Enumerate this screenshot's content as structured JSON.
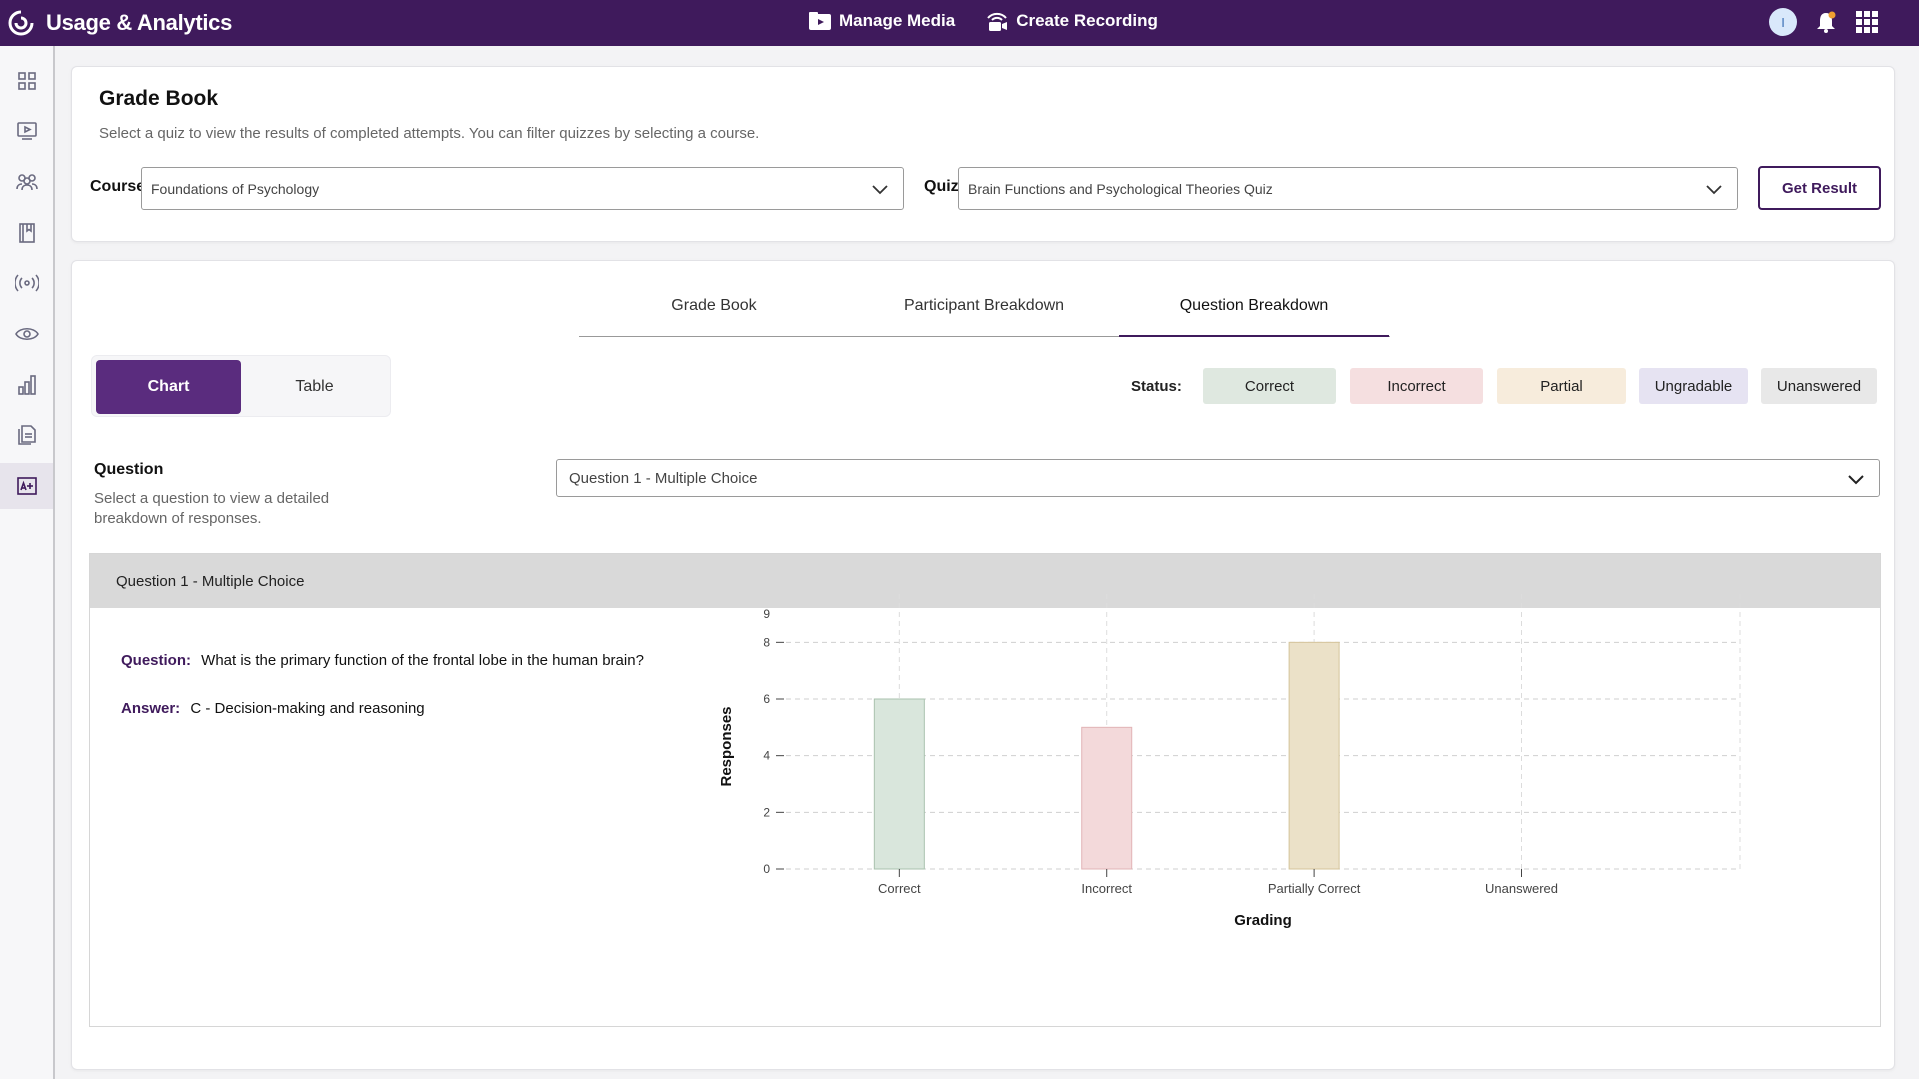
{
  "app": {
    "title": "Usage & Analytics",
    "nav": [
      {
        "label": "Manage Media",
        "icon": "media-folder-icon"
      },
      {
        "label": "Create Recording",
        "icon": "webcam-recording-icon"
      }
    ],
    "avatar_initial": "I"
  },
  "sidebar": {
    "items": [
      {
        "name": "dashboard-icon"
      },
      {
        "name": "media-player-icon"
      },
      {
        "name": "users-icon"
      },
      {
        "name": "library-book-icon"
      },
      {
        "name": "live-broadcast-icon"
      },
      {
        "name": "eye-icon"
      },
      {
        "name": "bar-chart-icon"
      },
      {
        "name": "documents-icon"
      },
      {
        "name": "gradebook-icon",
        "active": true
      }
    ]
  },
  "filters": {
    "title": "Grade Book",
    "description": "Select a quiz to view the results of completed attempts. You can filter quizzes by selecting a course.",
    "course_label": "Course",
    "course_value": "Foundations of Psychology",
    "quiz_label": "Quiz",
    "quiz_value": "Brain Functions and Psychological Theories Quiz",
    "get_result": "Get Result"
  },
  "tabs": [
    {
      "label": "Grade Book",
      "active": false
    },
    {
      "label": "Participant Breakdown",
      "active": false
    },
    {
      "label": "Question Breakdown",
      "active": true
    }
  ],
  "view_toggle": {
    "chart": "Chart",
    "table": "Table",
    "selected": "Chart"
  },
  "status": {
    "label": "Status:",
    "items": [
      {
        "label": "Correct",
        "color": "#dfe8e0"
      },
      {
        "label": "Incorrect",
        "color": "#f5dfe0"
      },
      {
        "label": "Partial",
        "color": "#f7ecdc"
      },
      {
        "label": "Ungradable",
        "color": "#e6e3f2"
      },
      {
        "label": "Unanswered",
        "color": "#e8e8e8"
      }
    ]
  },
  "question_picker": {
    "label": "Question",
    "help": "Select a question to view a detailed breakdown of responses.",
    "selected": "Question 1 - Multiple Choice"
  },
  "panel": {
    "title": "Question 1 - Multiple Choice",
    "question_key": "Question:",
    "question_text": "What is the primary function of the frontal lobe in the human brain?",
    "answer_key": "Answer:",
    "answer_text": "C - Decision-making and reasoning"
  },
  "chart_data": {
    "type": "bar",
    "categories": [
      "Correct",
      "Incorrect",
      "Partially Correct",
      "Unanswered"
    ],
    "values": [
      6,
      5,
      8,
      0
    ],
    "colors": [
      "#d9e6dc",
      "#f3d9da",
      "#ebe1c8",
      "#e8e8e8"
    ],
    "border_colors": [
      "#a9c2ae",
      "#e2b4b6",
      "#d4c49a",
      "#cccccc"
    ],
    "xlabel": "Grading",
    "ylabel": "Responses",
    "ylim": [
      0,
      9
    ],
    "yticks": [
      0,
      2,
      4,
      6,
      8,
      9
    ],
    "grid": true
  }
}
